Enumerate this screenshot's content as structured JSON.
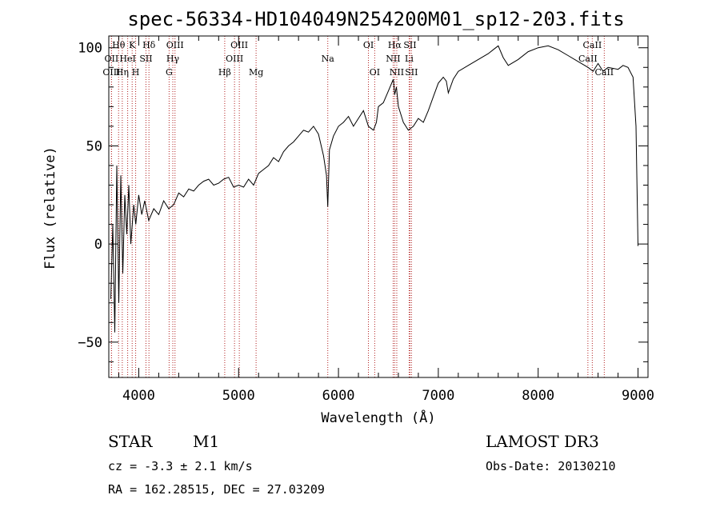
{
  "chart_data": {
    "type": "line",
    "title": "spec-56334-HD104049N254200M01_sp12-203.fits",
    "xlabel": "Wavelength (Å)",
    "ylabel": "Flux (relative)",
    "xlim": [
      3700,
      9100
    ],
    "ylim": [
      -68,
      106
    ],
    "xticks": [
      4000,
      5000,
      6000,
      7000,
      8000,
      9000
    ],
    "yticks": [
      -50,
      0,
      50,
      100
    ],
    "grid": false,
    "series": [
      {
        "name": "spectrum",
        "x": [
          3720,
          3740,
          3760,
          3780,
          3800,
          3820,
          3840,
          3860,
          3880,
          3900,
          3920,
          3950,
          3970,
          4000,
          4030,
          4060,
          4100,
          4150,
          4200,
          4250,
          4300,
          4350,
          4400,
          4450,
          4500,
          4550,
          4600,
          4650,
          4700,
          4750,
          4800,
          4850,
          4900,
          4950,
          5000,
          5050,
          5100,
          5150,
          5200,
          5250,
          5300,
          5350,
          5400,
          5450,
          5500,
          5550,
          5600,
          5650,
          5700,
          5750,
          5800,
          5850,
          5880,
          5893,
          5910,
          5950,
          6000,
          6050,
          6100,
          6150,
          6200,
          6250,
          6300,
          6350,
          6380,
          6400,
          6450,
          6500,
          6550,
          6563,
          6580,
          6600,
          6650,
          6700,
          6750,
          6800,
          6850,
          6900,
          6950,
          7000,
          7050,
          7080,
          7100,
          7150,
          7200,
          7300,
          7400,
          7500,
          7550,
          7600,
          7650,
          7700,
          7800,
          7900,
          8000,
          8100,
          8200,
          8300,
          8400,
          8500,
          8550,
          8600,
          8650,
          8700,
          8800,
          8850,
          8900,
          8950,
          8980,
          9000
        ],
        "y": [
          -28,
          10,
          -45,
          40,
          -30,
          35,
          -15,
          25,
          5,
          30,
          0,
          20,
          10,
          25,
          15,
          22,
          12,
          18,
          15,
          22,
          18,
          20,
          26,
          24,
          28,
          27,
          30,
          32,
          33,
          30,
          31,
          33,
          34,
          29,
          30,
          29,
          33,
          30,
          36,
          38,
          40,
          44,
          42,
          47,
          50,
          52,
          55,
          58,
          57,
          60,
          56,
          45,
          35,
          19,
          48,
          55,
          60,
          62,
          65,
          60,
          64,
          68,
          60,
          58,
          62,
          70,
          72,
          78,
          84,
          76,
          80,
          70,
          62,
          58,
          60,
          64,
          62,
          68,
          75,
          82,
          85,
          83,
          77,
          84,
          88,
          91,
          94,
          97,
          99,
          101,
          95,
          91,
          94,
          98,
          100,
          101,
          99,
          96,
          93,
          90,
          88,
          92,
          88,
          90,
          89,
          91,
          90,
          85,
          60,
          -1
        ]
      }
    ],
    "lines": [
      {
        "name": "Hθ",
        "wl": 3798,
        "row": 1
      },
      {
        "name": "OII",
        "wl": 3727,
        "row": 2
      },
      {
        "name": "OIII",
        "wl": 3727,
        "row": 3
      },
      {
        "name": "Hη",
        "wl": 3835,
        "row": 3
      },
      {
        "name": "HeI",
        "wl": 3889,
        "row": 2
      },
      {
        "name": "K",
        "wl": 3934,
        "row": 1
      },
      {
        "name": "H",
        "wl": 3969,
        "row": 3
      },
      {
        "name": "SII",
        "wl": 4072,
        "row": 2
      },
      {
        "name": "Hδ",
        "wl": 4102,
        "row": 1
      },
      {
        "name": "OIII",
        "wl": 4363,
        "row": 1
      },
      {
        "name": "Hγ",
        "wl": 4341,
        "row": 2
      },
      {
        "name": "G",
        "wl": 4304,
        "row": 3
      },
      {
        "name": "OIII",
        "wl": 5007,
        "row": 1
      },
      {
        "name": "OIII",
        "wl": 4959,
        "row": 2
      },
      {
        "name": "Hβ",
        "wl": 4861,
        "row": 3
      },
      {
        "name": "Mg",
        "wl": 5175,
        "row": 3
      },
      {
        "name": "Na",
        "wl": 5893,
        "row": 2
      },
      {
        "name": "OI",
        "wl": 6300,
        "row": 1
      },
      {
        "name": "OI",
        "wl": 6363,
        "row": 3
      },
      {
        "name": "Hα",
        "wl": 6563,
        "row": 1
      },
      {
        "name": "SII",
        "wl": 6716,
        "row": 1
      },
      {
        "name": "NII",
        "wl": 6548,
        "row": 2
      },
      {
        "name": "Li",
        "wl": 6708,
        "row": 2
      },
      {
        "name": "NII",
        "wl": 6584,
        "row": 3
      },
      {
        "name": "SII",
        "wl": 6731,
        "row": 3
      },
      {
        "name": "CaII",
        "wl": 8542,
        "row": 1
      },
      {
        "name": "CaII",
        "wl": 8498,
        "row": 2
      },
      {
        "name": "CaII",
        "wl": 8662,
        "row": 3
      }
    ],
    "line_color": "#b22222"
  },
  "info": {
    "class": "STAR",
    "subclass": "M1",
    "cz": "cz = -3.3 ± 2.1 km/s",
    "radec": "RA = 162.28515, DEC =  27.03209",
    "survey": "LAMOST DR3",
    "obsdate": "Obs-Date: 20130210"
  }
}
